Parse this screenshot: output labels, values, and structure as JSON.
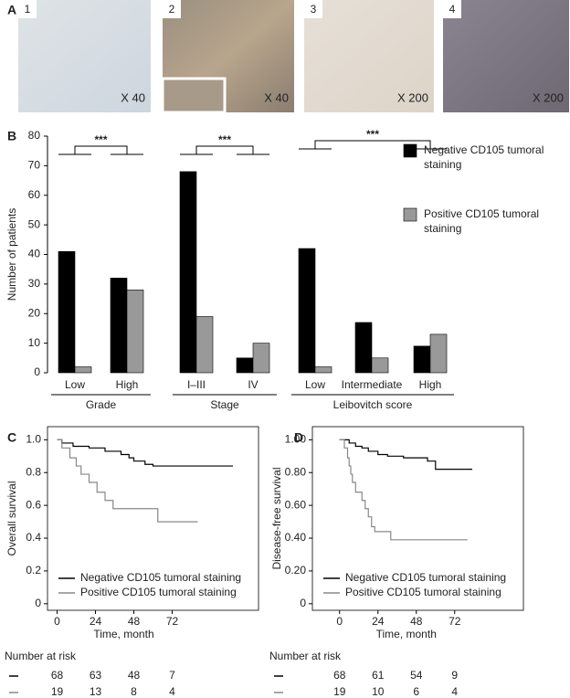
{
  "panel_labels": [
    "A",
    "B",
    "C",
    "D"
  ],
  "images": [
    {
      "number": "1",
      "magnification": "X 40"
    },
    {
      "number": "2",
      "magnification": "X 40"
    },
    {
      "number": "3",
      "magnification": "X 200"
    },
    {
      "number": "4",
      "magnification": "X 200"
    }
  ],
  "chart_data": [
    {
      "type": "bar",
      "ylabel": "Number of patients",
      "categories": [
        "Low",
        "High",
        "I–III",
        "IV",
        "Low",
        "Intermediate",
        "High"
      ],
      "groups": [
        "Grade",
        "Stage",
        "Leibovitch score"
      ],
      "significance": [
        "***",
        "***",
        "***"
      ],
      "series": [
        {
          "name": "Negative CD105 tumoral staining",
          "color": "#000000",
          "values": [
            41,
            32,
            68,
            5,
            42,
            17,
            9
          ]
        },
        {
          "name": "Positive CD105 tumoral staining",
          "color": "#999999",
          "values": [
            2,
            28,
            19,
            10,
            2,
            5,
            13
          ]
        }
      ],
      "ylim": [
        0,
        80
      ],
      "yticks": [
        0,
        10,
        20,
        30,
        40,
        50,
        60,
        70,
        80
      ]
    },
    {
      "type": "line",
      "xlabel": "Time, month",
      "ylabel": "Overall survival",
      "xlim": [
        -6,
        126
      ],
      "xticks": [
        0,
        24,
        48,
        72
      ],
      "ylim": [
        -0.04,
        1.08
      ],
      "yticks": [
        0,
        0.2,
        0.4,
        0.6,
        0.8,
        {
          "value": 1,
          "label": "1.0"
        }
      ],
      "series": [
        {
          "name": "Negative CD105 tumoral staining",
          "color": "#000000",
          "x": [
            0,
            3,
            3,
            10,
            10,
            20,
            20,
            30,
            30,
            40,
            40,
            45,
            45,
            48,
            48,
            55,
            55,
            60,
            60,
            110
          ],
          "values": [
            1,
            1,
            0.98,
            0.98,
            0.96,
            0.96,
            0.95,
            0.95,
            0.93,
            0.93,
            0.91,
            0.91,
            0.89,
            0.89,
            0.87,
            0.87,
            0.85,
            0.85,
            0.84,
            0.84
          ]
        },
        {
          "name": "Positive CD105 tumoral staining",
          "color": "#888888",
          "x": [
            0,
            3,
            3,
            8,
            8,
            12,
            12,
            15,
            15,
            20,
            20,
            25,
            25,
            30,
            30,
            35,
            35,
            63,
            63,
            88
          ],
          "values": [
            1,
            1,
            0.95,
            0.95,
            0.89,
            0.89,
            0.84,
            0.84,
            0.79,
            0.79,
            0.74,
            0.74,
            0.68,
            0.68,
            0.63,
            0.63,
            0.58,
            0.58,
            0.5,
            0.5
          ]
        }
      ],
      "risk_table": {
        "title": "Number at risk",
        "rows": [
          [
            68,
            63,
            48,
            7
          ],
          [
            19,
            13,
            8,
            4
          ]
        ]
      }
    },
    {
      "type": "line",
      "xlabel": "Time, month",
      "ylabel": "Disease-free survival",
      "xlim": [
        -17,
        115
      ],
      "xticks": [
        0,
        24,
        48,
        72
      ],
      "ylim": [
        -0.04,
        1.08
      ],
      "yticks": [
        0,
        {
          "value": 0.2,
          "label": "0.20"
        },
        {
          "value": 0.4,
          "label": "0.40"
        },
        {
          "value": 0.6,
          "label": "0.60"
        },
        {
          "value": 0.8,
          "label": "0.80"
        },
        {
          "value": 1,
          "label": "1.00"
        }
      ],
      "series": [
        {
          "name": "Negative CD105 tumoral staining",
          "color": "#000000",
          "x": [
            0,
            6,
            6,
            10,
            10,
            14,
            14,
            18,
            18,
            24,
            24,
            30,
            30,
            40,
            40,
            55,
            55,
            60,
            60,
            64,
            64,
            83
          ],
          "values": [
            1,
            1,
            0.98,
            0.98,
            0.96,
            0.96,
            0.95,
            0.95,
            0.93,
            0.93,
            0.91,
            0.91,
            0.9,
            0.9,
            0.89,
            0.89,
            0.87,
            0.87,
            0.82,
            0.82,
            0.82,
            0.82
          ]
        },
        {
          "name": "Positive CD105 tumoral staining",
          "color": "#888888",
          "x": [
            0,
            3,
            3,
            5,
            5,
            6,
            6,
            7,
            7,
            8,
            8,
            10,
            10,
            14,
            14,
            16,
            16,
            18,
            18,
            20,
            20,
            22,
            22,
            32,
            32,
            80
          ],
          "values": [
            1,
            1,
            0.95,
            0.95,
            0.89,
            0.89,
            0.84,
            0.84,
            0.79,
            0.79,
            0.74,
            0.74,
            0.68,
            0.68,
            0.63,
            0.63,
            0.58,
            0.58,
            0.53,
            0.53,
            0.47,
            0.47,
            0.44,
            0.44,
            0.39,
            0.39
          ]
        }
      ],
      "risk_table": {
        "title": "Number at risk",
        "rows": [
          [
            68,
            61,
            54,
            9
          ],
          [
            19,
            10,
            6,
            4
          ]
        ]
      }
    }
  ]
}
